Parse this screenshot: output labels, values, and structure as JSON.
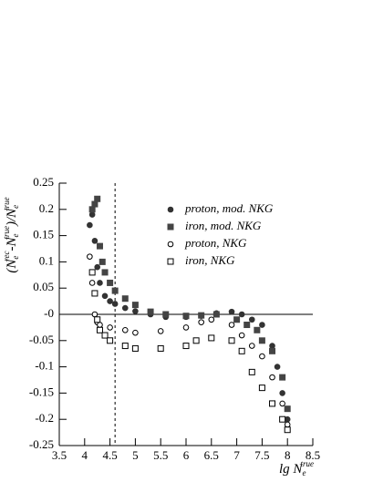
{
  "chart_data": {
    "type": "scatter",
    "ylabel": {
      "a": "(N",
      "a_sub": "e",
      "a_sup": "rec",
      "b": "-N",
      "b_sub": "e",
      "b_sup": "true",
      "c": ")/N",
      "c_sub": "e",
      "c_sup": "true"
    },
    "xlabel": {
      "base": "lg N",
      "sub": "e",
      "sup": "true"
    },
    "xlim": [
      3.5,
      8.5
    ],
    "xticks": [
      3.5,
      4,
      4.5,
      5,
      5.5,
      6,
      6.5,
      7,
      7.5,
      8,
      8.5
    ],
    "ylim": [
      -0.25,
      0.25
    ],
    "yticks": [
      -0.25,
      -0.2,
      -0.15,
      -0.1,
      -0.05,
      {
        "value": 0,
        "label": "-0"
      },
      0.05,
      0.1,
      0.15,
      0.2,
      0.25
    ],
    "vline": 4.6,
    "series": [
      {
        "name": "proton, mod. NKG",
        "color": "#333333",
        "marker": "circle",
        "filled": true,
        "x": [
          4.1,
          4.15,
          4.2,
          4.25,
          4.3,
          4.4,
          4.5,
          4.6,
          4.8,
          5.0,
          5.3,
          5.6,
          6.0,
          6.3,
          6.6,
          6.9,
          7.1,
          7.3,
          7.5,
          7.7,
          7.8,
          7.9,
          8.0
        ],
        "values": [
          0.17,
          0.19,
          0.14,
          0.09,
          0.06,
          0.035,
          0.025,
          0.02,
          0.012,
          0.006,
          0.0,
          -0.005,
          -0.005,
          -0.003,
          0.002,
          0.005,
          0.0,
          -0.01,
          -0.02,
          -0.06,
          -0.1,
          -0.15,
          -0.2
        ]
      },
      {
        "name": "iron, mod. NKG",
        "color": "#444444",
        "marker": "square",
        "filled": true,
        "x": [
          4.15,
          4.2,
          4.25,
          4.3,
          4.35,
          4.4,
          4.5,
          4.6,
          4.8,
          5.0,
          5.3,
          5.6,
          6.0,
          6.3,
          6.6,
          7.0,
          7.2,
          7.4,
          7.5,
          7.7,
          7.9,
          8.0
        ],
        "values": [
          0.2,
          0.21,
          0.22,
          0.13,
          0.1,
          0.08,
          0.06,
          0.045,
          0.03,
          0.018,
          0.005,
          0.0,
          -0.003,
          -0.002,
          0.0,
          -0.01,
          -0.02,
          -0.03,
          -0.05,
          -0.07,
          -0.12,
          -0.18
        ]
      },
      {
        "name": "proton, NKG",
        "color": "#000000",
        "marker": "circle",
        "filled": false,
        "x": [
          4.1,
          4.15,
          4.2,
          4.25,
          4.3,
          4.5,
          4.8,
          5.0,
          5.5,
          6.0,
          6.3,
          6.5,
          6.9,
          7.1,
          7.3,
          7.5,
          7.7,
          7.9,
          8.0
        ],
        "values": [
          0.11,
          0.06,
          0.0,
          -0.015,
          -0.02,
          -0.025,
          -0.03,
          -0.035,
          -0.032,
          -0.025,
          -0.015,
          -0.01,
          -0.02,
          -0.04,
          -0.06,
          -0.08,
          -0.12,
          -0.17,
          -0.21
        ]
      },
      {
        "name": "iron, NKG",
        "color": "#000000",
        "marker": "square",
        "filled": false,
        "x": [
          4.15,
          4.2,
          4.25,
          4.3,
          4.4,
          4.5,
          4.8,
          5.0,
          5.5,
          6.0,
          6.2,
          6.5,
          6.9,
          7.1,
          7.3,
          7.5,
          7.7,
          7.9,
          8.0
        ],
        "values": [
          0.08,
          0.04,
          -0.01,
          -0.03,
          -0.04,
          -0.05,
          -0.06,
          -0.065,
          -0.065,
          -0.06,
          -0.05,
          -0.045,
          -0.05,
          -0.07,
          -0.11,
          -0.14,
          -0.17,
          -0.2,
          -0.22
        ]
      }
    ]
  }
}
